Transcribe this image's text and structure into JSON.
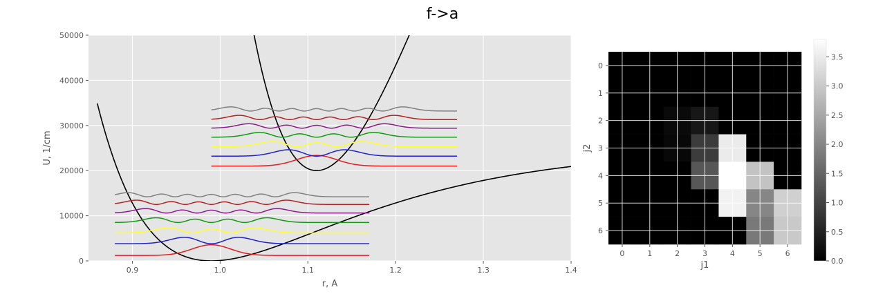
{
  "figure": {
    "title": "f->a"
  },
  "chart_data": [
    {
      "type": "line",
      "xlabel": "r, A",
      "ylabel": "U, 1/cm",
      "xlim": [
        0.85,
        1.4
      ],
      "ylim": [
        0,
        50000
      ],
      "xticks": [
        "0.9",
        "1.0",
        "1.1",
        "1.2",
        "1.3",
        "1.4"
      ],
      "yticks": [
        "0",
        "10000",
        "20000",
        "30000",
        "40000",
        "50000"
      ],
      "grid": true,
      "background": "#e5e5e5",
      "potentials": [
        {
          "curve": "lower",
          "min_r": 0.99,
          "min_U": 0,
          "dissociation_U": 25000,
          "color": "#000000"
        },
        {
          "curve": "upper",
          "min_r": 1.11,
          "min_U": 20000,
          "color": "#000000"
        }
      ],
      "wavefunction_colors": [
        "#e41a1c",
        "#1f1fcf",
        "#ffff22",
        "#119911",
        "#8b1a8b",
        "#b22222",
        "#808080"
      ],
      "lower_levels": {
        "x_range": [
          0.88,
          1.17
        ],
        "offsets": [
          1200,
          3800,
          6200,
          8500,
          10600,
          12500,
          14200
        ]
      },
      "upper_levels": {
        "x_range": [
          0.99,
          1.27
        ],
        "offsets": [
          21000,
          23200,
          25300,
          27400,
          29400,
          31300,
          33200
        ]
      }
    },
    {
      "type": "heatmap",
      "xlabel": "j1",
      "ylabel": "j2",
      "xticks": [
        "0",
        "1",
        "2",
        "3",
        "4",
        "5",
        "6"
      ],
      "yticks": [
        "0",
        "1",
        "2",
        "3",
        "4",
        "5",
        "6"
      ],
      "colormap": "gray",
      "vmin": 0,
      "vmax": 3.8,
      "colorbar_ticks": [
        "0.0",
        "0.5",
        "1.0",
        "1.5",
        "2.0",
        "2.5",
        "3.0",
        "3.5"
      ],
      "values": [
        [
          0,
          0,
          0,
          0,
          0,
          0,
          0
        ],
        [
          0,
          0,
          0,
          0,
          0,
          0,
          0
        ],
        [
          0,
          0,
          0.15,
          0.35,
          0,
          0,
          0
        ],
        [
          0,
          0,
          0.12,
          0.9,
          3.5,
          0,
          0
        ],
        [
          0,
          0,
          0,
          1.3,
          3.8,
          2.9,
          0
        ],
        [
          0,
          0,
          0,
          0,
          3.6,
          2.0,
          3.1
        ],
        [
          0,
          0,
          0,
          0,
          0,
          1.8,
          3.0
        ]
      ]
    }
  ]
}
